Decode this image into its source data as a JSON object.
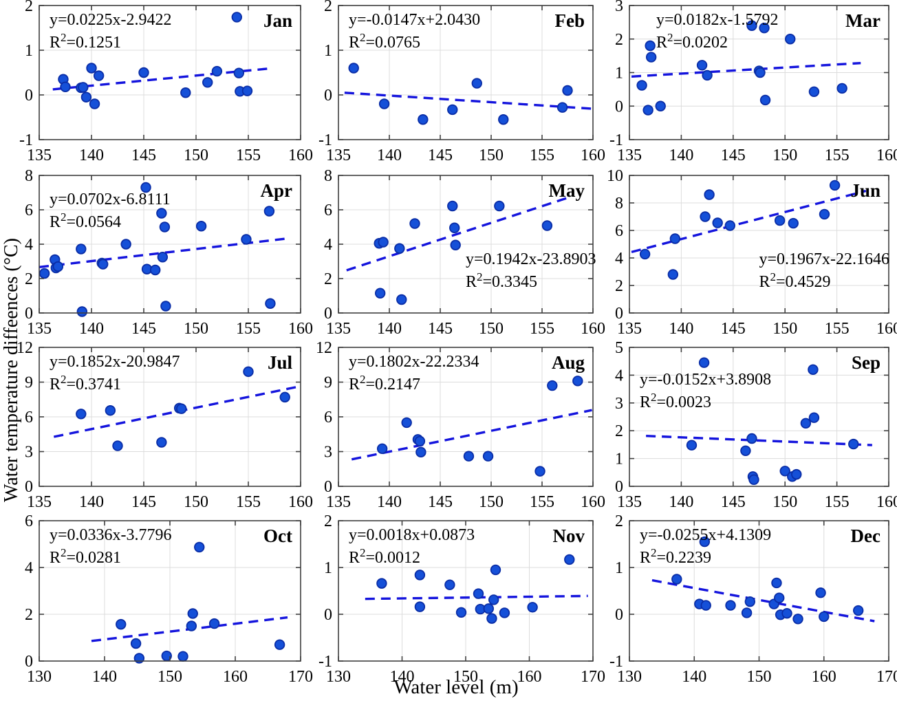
{
  "figure": {
    "xlabel": "Water level (m)",
    "ylabel": "Water temperature diffeences (°C)",
    "colors": {
      "marker_fill": "#1550d8",
      "marker_edge": "#0a2da6",
      "trend": "#1414dd",
      "grid": "#dcdcdc",
      "axis": "#3f3f3f",
      "text": "#000000"
    }
  },
  "chart_data": [
    {
      "type": "scatter",
      "month": "Jan",
      "equation": "y=0.0225x-2.9422",
      "r2": "0.1251",
      "slope": 0.0225,
      "intercept": -2.9422,
      "xlim": [
        135,
        160
      ],
      "ylim": [
        -1,
        2
      ],
      "xticks": [
        135,
        140,
        145,
        150,
        155,
        160
      ],
      "yticks": [
        -1,
        0,
        1,
        2
      ],
      "trend_x": [
        136.3,
        157.2
      ],
      "eq_pos": "tl",
      "eq_dx": 0,
      "eq_dy": 0,
      "points": [
        [
          137.3,
          0.35
        ],
        [
          137.5,
          0.18
        ],
        [
          139.0,
          0.16
        ],
        [
          139.2,
          0.17
        ],
        [
          139.5,
          -0.05
        ],
        [
          140.0,
          0.6
        ],
        [
          140.3,
          -0.2
        ],
        [
          140.7,
          0.43
        ],
        [
          145.0,
          0.5
        ],
        [
          149.0,
          0.05
        ],
        [
          151.1,
          0.28
        ],
        [
          152.0,
          0.53
        ],
        [
          153.9,
          1.74
        ],
        [
          154.1,
          0.49
        ],
        [
          154.2,
          0.08
        ],
        [
          154.9,
          0.09
        ]
      ]
    },
    {
      "type": "scatter",
      "month": "Feb",
      "equation": "y=-0.0147x+2.0430",
      "r2": "0.0765",
      "slope": -0.0147,
      "intercept": 2.043,
      "xlim": [
        135,
        160
      ],
      "ylim": [
        -1,
        2
      ],
      "xticks": [
        135,
        140,
        145,
        150,
        155,
        160
      ],
      "yticks": [
        -1,
        0,
        1,
        2
      ],
      "trend_x": [
        135.6,
        160.0
      ],
      "eq_pos": "tl",
      "eq_dx": 0,
      "eq_dy": 0,
      "points": [
        [
          136.5,
          0.6
        ],
        [
          139.5,
          -0.2
        ],
        [
          143.3,
          -0.55
        ],
        [
          146.2,
          -0.33
        ],
        [
          148.6,
          0.26
        ],
        [
          151.2,
          -0.55
        ],
        [
          157.0,
          -0.28
        ],
        [
          157.5,
          0.1
        ]
      ]
    },
    {
      "type": "scatter",
      "month": "Mar",
      "equation": "y=0.0182x-1.5792",
      "r2": "0.0202",
      "slope": 0.0182,
      "intercept": -1.5792,
      "xlim": [
        135,
        160
      ],
      "ylim": [
        -1,
        3
      ],
      "xticks": [
        135,
        140,
        145,
        150,
        155,
        160
      ],
      "yticks": [
        -1,
        0,
        1,
        2,
        3
      ],
      "trend_x": [
        135.2,
        157.3
      ],
      "eq_pos": "tl",
      "eq_dx": 24,
      "eq_dy": 0,
      "points": [
        [
          136.2,
          0.62
        ],
        [
          136.8,
          -0.12
        ],
        [
          137.0,
          1.8
        ],
        [
          137.1,
          1.46
        ],
        [
          138.0,
          0.0
        ],
        [
          142.0,
          1.22
        ],
        [
          142.5,
          0.92
        ],
        [
          146.8,
          2.4
        ],
        [
          147.5,
          1.05
        ],
        [
          147.6,
          1.0
        ],
        [
          148.0,
          2.33
        ],
        [
          148.1,
          0.18
        ],
        [
          150.5,
          2.0
        ],
        [
          152.8,
          0.43
        ],
        [
          155.5,
          0.53
        ]
      ]
    },
    {
      "type": "scatter",
      "month": "Apr",
      "equation": "y=0.0702x-6.8111",
      "r2": "0.0564",
      "slope": 0.0702,
      "intercept": -6.8111,
      "xlim": [
        135,
        160
      ],
      "ylim": [
        0,
        8
      ],
      "xticks": [
        135,
        140,
        145,
        150,
        155,
        160
      ],
      "yticks": [
        0,
        2,
        4,
        6,
        8
      ],
      "trend_x": [
        135.0,
        158.6
      ],
      "eq_pos": "tl",
      "eq_dx": 0,
      "eq_dy": 14,
      "points": [
        [
          135.5,
          2.3
        ],
        [
          136.5,
          3.1
        ],
        [
          136.6,
          2.62
        ],
        [
          136.8,
          2.7
        ],
        [
          139.0,
          3.72
        ],
        [
          139.1,
          0.08
        ],
        [
          141.0,
          2.9
        ],
        [
          141.1,
          2.84
        ],
        [
          143.3,
          4.0
        ],
        [
          145.2,
          7.3
        ],
        [
          145.3,
          2.55
        ],
        [
          146.1,
          2.5
        ],
        [
          146.7,
          5.8
        ],
        [
          146.8,
          3.25
        ],
        [
          147.0,
          5.0
        ],
        [
          147.1,
          0.4
        ],
        [
          150.5,
          5.05
        ],
        [
          154.8,
          4.28
        ],
        [
          157.0,
          5.92
        ],
        [
          157.1,
          0.55
        ]
      ]
    },
    {
      "type": "scatter",
      "month": "May",
      "equation": "y=0.1942x-23.8903",
      "r2": "0.3345",
      "slope": 0.1942,
      "intercept": -23.8903,
      "xlim": [
        135,
        160
      ],
      "ylim": [
        0,
        8
      ],
      "xticks": [
        135,
        140,
        145,
        150,
        155,
        160
      ],
      "yticks": [
        0,
        2,
        4,
        6,
        8
      ],
      "trend_x": [
        135.8,
        157.6
      ],
      "eq_pos": "mr",
      "eq_dx": 0,
      "eq_dy": 0,
      "points": [
        [
          139.0,
          4.05
        ],
        [
          139.1,
          1.15
        ],
        [
          139.4,
          4.12
        ],
        [
          141.0,
          3.75
        ],
        [
          141.2,
          0.78
        ],
        [
          142.5,
          5.2
        ],
        [
          146.2,
          6.22
        ],
        [
          146.4,
          4.95
        ],
        [
          146.5,
          3.95
        ],
        [
          150.8,
          6.22
        ],
        [
          155.5,
          5.08
        ]
      ]
    },
    {
      "type": "scatter",
      "month": "Jun",
      "equation": "y=0.1967x-22.1646",
      "r2": "0.4529",
      "slope": 0.1967,
      "intercept": -22.1646,
      "xlim": [
        135,
        160
      ],
      "ylim": [
        0,
        10
      ],
      "xticks": [
        135,
        140,
        145,
        150,
        155,
        160
      ],
      "yticks": [
        0,
        2,
        4,
        6,
        8,
        10
      ],
      "trend_x": [
        135.2,
        157.8
      ],
      "eq_pos": "mr",
      "eq_dx": 0,
      "eq_dy": 0,
      "points": [
        [
          136.5,
          4.28
        ],
        [
          139.2,
          2.8
        ],
        [
          139.4,
          5.4
        ],
        [
          142.3,
          7.0
        ],
        [
          142.7,
          8.6
        ],
        [
          143.5,
          6.55
        ],
        [
          144.7,
          6.35
        ],
        [
          149.5,
          6.72
        ],
        [
          150.8,
          6.52
        ],
        [
          153.8,
          7.18
        ],
        [
          154.8,
          9.28
        ]
      ]
    },
    {
      "type": "scatter",
      "month": "Jul",
      "equation": "y=0.1852x-20.9847",
      "r2": "0.3741",
      "slope": 0.1852,
      "intercept": -20.9847,
      "xlim": [
        135,
        160
      ],
      "ylim": [
        0,
        12
      ],
      "xticks": [
        135,
        140,
        145,
        150,
        155,
        160
      ],
      "yticks": [
        0,
        3,
        6,
        9,
        12
      ],
      "trend_x": [
        136.4,
        159.9
      ],
      "eq_pos": "tl",
      "eq_dx": 0,
      "eq_dy": 0,
      "points": [
        [
          139.0,
          6.25
        ],
        [
          141.8,
          6.55
        ],
        [
          142.5,
          3.5
        ],
        [
          146.7,
          3.8
        ],
        [
          148.4,
          6.75
        ],
        [
          148.6,
          6.7
        ],
        [
          155.0,
          9.9
        ],
        [
          158.5,
          7.7
        ]
      ]
    },
    {
      "type": "scatter",
      "month": "Aug",
      "equation": "y=0.1802x-22.2334",
      "r2": "0.2147",
      "slope": 0.1802,
      "intercept": -22.2334,
      "xlim": [
        135,
        160
      ],
      "ylim": [
        0,
        12
      ],
      "xticks": [
        135,
        140,
        145,
        150,
        155,
        160
      ],
      "yticks": [
        0,
        3,
        6,
        9,
        12
      ],
      "trend_x": [
        136.3,
        159.9
      ],
      "eq_pos": "tl",
      "eq_dx": 0,
      "eq_dy": 0,
      "points": [
        [
          139.3,
          3.25
        ],
        [
          141.7,
          5.5
        ],
        [
          142.8,
          4.05
        ],
        [
          143.0,
          3.9
        ],
        [
          143.1,
          2.95
        ],
        [
          147.8,
          2.6
        ],
        [
          149.7,
          2.6
        ],
        [
          154.8,
          1.3
        ],
        [
          156.0,
          8.7
        ],
        [
          158.5,
          9.1
        ]
      ]
    },
    {
      "type": "scatter",
      "month": "Sep",
      "equation": "y=-0.0152x+3.8908",
      "r2": "0.0023",
      "slope": -0.0152,
      "intercept": 3.8908,
      "xlim": [
        135,
        160
      ],
      "ylim": [
        0,
        5
      ],
      "xticks": [
        135,
        140,
        145,
        150,
        155,
        160
      ],
      "yticks": [
        0,
        1,
        2,
        3,
        4,
        5
      ],
      "trend_x": [
        136.6,
        158.4
      ],
      "eq_pos": "tl",
      "eq_dx": 0,
      "eq_dy": 26,
      "points": [
        [
          141.0,
          1.48
        ],
        [
          142.2,
          4.45
        ],
        [
          146.2,
          1.28
        ],
        [
          146.8,
          1.72
        ],
        [
          146.9,
          0.35
        ],
        [
          147.0,
          0.24
        ],
        [
          150.0,
          0.55
        ],
        [
          150.7,
          0.35
        ],
        [
          151.1,
          0.43
        ],
        [
          152.0,
          2.27
        ],
        [
          152.7,
          4.2
        ],
        [
          152.8,
          2.47
        ],
        [
          156.6,
          1.52
        ]
      ]
    },
    {
      "type": "scatter",
      "month": "Oct",
      "equation": "y=0.0336x-3.7796",
      "r2": "0.0281",
      "slope": 0.0336,
      "intercept": -3.7796,
      "xlim": [
        130,
        170
      ],
      "ylim": [
        0,
        6
      ],
      "xticks": [
        130,
        140,
        150,
        160,
        170
      ],
      "yticks": [
        0,
        2,
        4,
        6
      ],
      "trend_x": [
        138.0,
        168.0
      ],
      "eq_pos": "tl",
      "eq_dx": 0,
      "eq_dy": 0,
      "points": [
        [
          142.5,
          1.57
        ],
        [
          144.8,
          0.75
        ],
        [
          145.3,
          0.12
        ],
        [
          149.5,
          0.22
        ],
        [
          152.0,
          0.2
        ],
        [
          153.3,
          1.5
        ],
        [
          153.5,
          2.03
        ],
        [
          154.5,
          4.87
        ],
        [
          156.8,
          1.6
        ],
        [
          166.8,
          0.7
        ]
      ]
    },
    {
      "type": "scatter",
      "month": "Nov",
      "equation": "y=0.0018x+0.0873",
      "r2": "0.0012",
      "slope": 0.0018,
      "intercept": 0.0873,
      "xlim": [
        130,
        170
      ],
      "ylim": [
        -1,
        2
      ],
      "xticks": [
        130,
        140,
        150,
        160,
        170
      ],
      "yticks": [
        -1,
        0,
        1,
        2
      ],
      "trend_x": [
        134.2,
        169.2
      ],
      "eq_pos": "tl",
      "eq_dx": 0,
      "eq_dy": 0,
      "points": [
        [
          136.8,
          0.66
        ],
        [
          142.8,
          0.84
        ],
        [
          142.8,
          0.16
        ],
        [
          147.5,
          0.63
        ],
        [
          149.3,
          0.04
        ],
        [
          152.0,
          0.44
        ],
        [
          152.3,
          0.11
        ],
        [
          153.6,
          0.12
        ],
        [
          154.1,
          -0.09
        ],
        [
          154.4,
          0.31
        ],
        [
          154.7,
          0.95
        ],
        [
          156.1,
          0.03
        ],
        [
          160.5,
          0.15
        ],
        [
          166.3,
          1.17
        ]
      ]
    },
    {
      "type": "scatter",
      "month": "Dec",
      "equation": "y=-0.0255x+4.1309",
      "r2": "0.2239",
      "slope": -0.0255,
      "intercept": 4.1309,
      "xlim": [
        130,
        170
      ],
      "ylim": [
        -1,
        2
      ],
      "xticks": [
        130,
        140,
        150,
        160,
        170
      ],
      "yticks": [
        -1,
        0,
        1,
        2
      ],
      "trend_x": [
        133.5,
        167.8
      ],
      "eq_pos": "tl",
      "eq_dx": 0,
      "eq_dy": 0,
      "points": [
        [
          137.3,
          0.75
        ],
        [
          140.8,
          0.22
        ],
        [
          141.6,
          1.55
        ],
        [
          141.8,
          0.19
        ],
        [
          145.6,
          0.19
        ],
        [
          148.1,
          0.03
        ],
        [
          148.6,
          0.27
        ],
        [
          152.3,
          0.22
        ],
        [
          152.7,
          0.67
        ],
        [
          153.1,
          0.35
        ],
        [
          153.3,
          -0.01
        ],
        [
          154.3,
          0.02
        ],
        [
          156.0,
          -0.1
        ],
        [
          159.5,
          0.46
        ],
        [
          160.0,
          -0.05
        ],
        [
          165.3,
          0.08
        ]
      ]
    }
  ]
}
